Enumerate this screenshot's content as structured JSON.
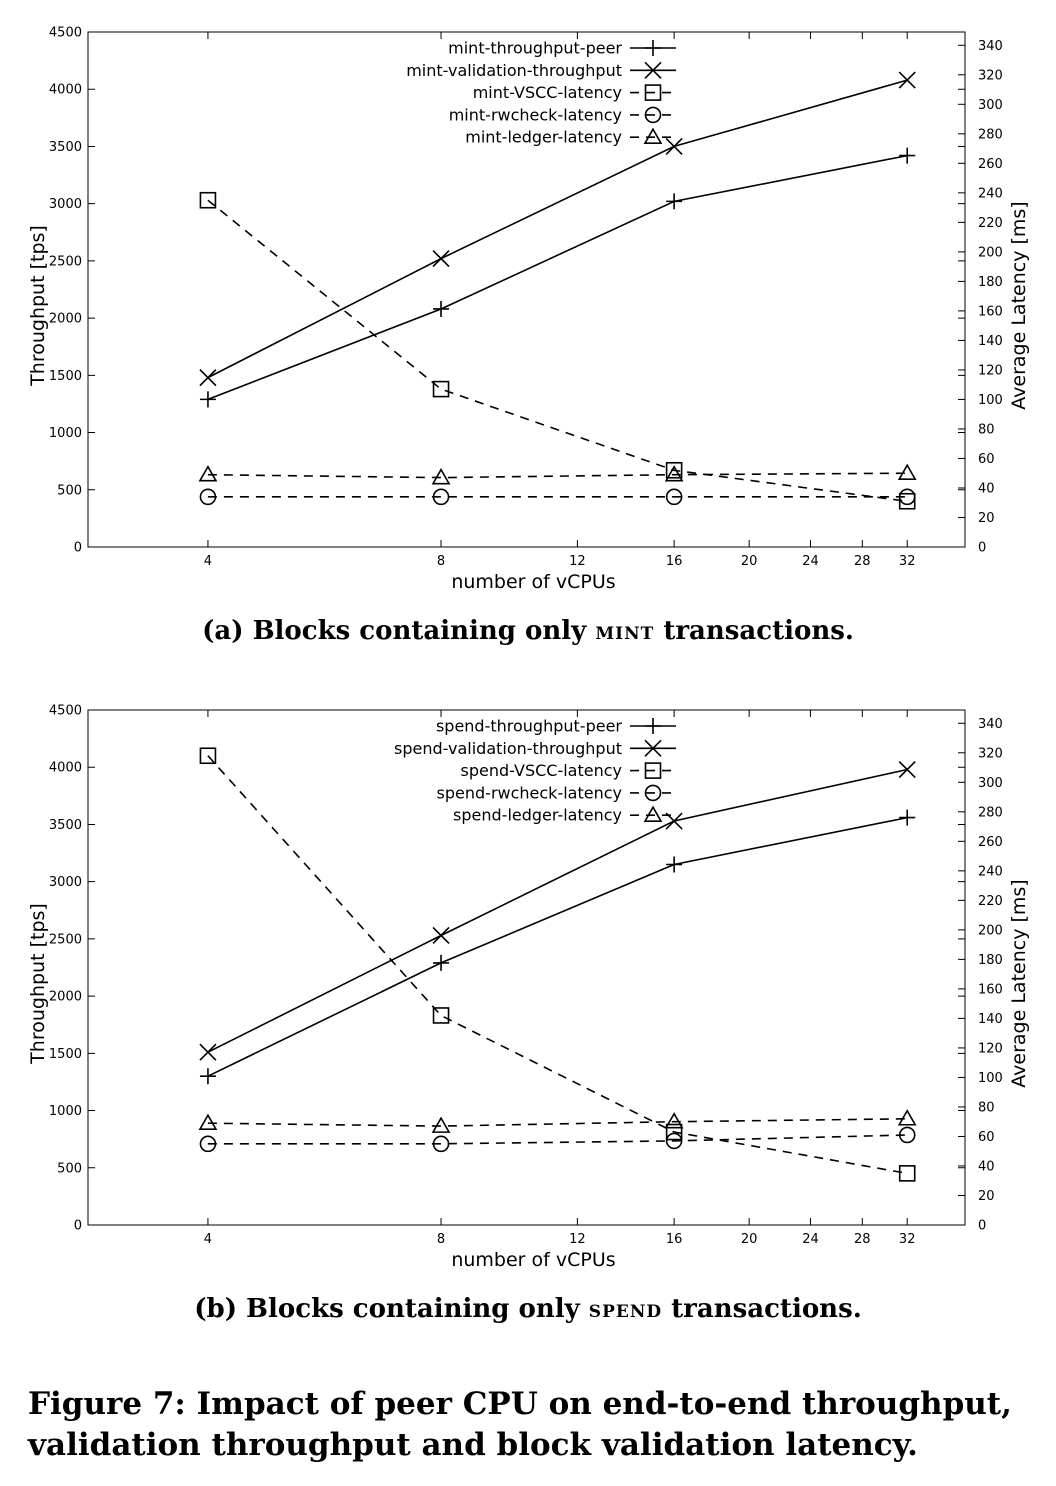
{
  "captions": {
    "a": {
      "prefix": "(a) Blocks containing only ",
      "keyword": "mint",
      "suffix": " transactions."
    },
    "b": {
      "prefix": "(b) Blocks containing only ",
      "keyword": "spend",
      "suffix": " transactions."
    },
    "figure": "Figure 7: Impact of peer CPU on end-to-end throughput, validation throughput and block validation latency."
  },
  "chart_data": [
    {
      "type": "line",
      "xlabel": "number of vCPUs",
      "ylabel": "Throughput [tps]",
      "y2label": "Average Latency [ms]",
      "x_scale": "log2",
      "x_ticks": [
        4,
        8,
        12,
        16,
        20,
        24,
        28,
        32
      ],
      "xlim": [
        2.8,
        38
      ],
      "ylim": [
        0,
        4500
      ],
      "y_ticks": [
        0,
        500,
        1000,
        1500,
        2000,
        2500,
        3000,
        3500,
        4000,
        4500
      ],
      "y2lim": [
        0,
        349
      ],
      "y2_ticks": [
        0,
        20,
        40,
        60,
        80,
        100,
        120,
        140,
        160,
        180,
        200,
        220,
        240,
        260,
        280,
        300,
        320,
        340
      ],
      "legend_position": "top-right",
      "x": [
        4,
        8,
        16,
        32
      ],
      "series": [
        {
          "name": "mint-throughput-peer",
          "axis": "left",
          "marker": "plus",
          "dash": false,
          "values": [
            1290,
            2080,
            3020,
            3420
          ]
        },
        {
          "name": "mint-validation-throughput",
          "axis": "left",
          "marker": "cross",
          "dash": false,
          "values": [
            1480,
            2520,
            3500,
            4080
          ]
        },
        {
          "name": "mint-VSCC-latency",
          "axis": "right",
          "marker": "square",
          "dash": true,
          "values": [
            235,
            107,
            52,
            31
          ]
        },
        {
          "name": "mint-rwcheck-latency",
          "axis": "right",
          "marker": "circle",
          "dash": true,
          "values": [
            34,
            34,
            34,
            34
          ]
        },
        {
          "name": "mint-ledger-latency",
          "axis": "right",
          "marker": "triangle",
          "dash": true,
          "values": [
            49,
            47,
            49,
            50
          ]
        }
      ]
    },
    {
      "type": "line",
      "xlabel": "number of vCPUs",
      "ylabel": "Throughput [tps]",
      "y2label": "Average Latency [ms]",
      "x_scale": "log2",
      "x_ticks": [
        4,
        8,
        12,
        16,
        20,
        24,
        28,
        32
      ],
      "xlim": [
        2.8,
        38
      ],
      "ylim": [
        0,
        4500
      ],
      "y_ticks": [
        0,
        500,
        1000,
        1500,
        2000,
        2500,
        3000,
        3500,
        4000,
        4500
      ],
      "y2lim": [
        0,
        349
      ],
      "y2_ticks": [
        0,
        20,
        40,
        60,
        80,
        100,
        120,
        140,
        160,
        180,
        200,
        220,
        240,
        260,
        280,
        300,
        320,
        340
      ],
      "legend_position": "top-right",
      "x": [
        4,
        8,
        16,
        32
      ],
      "series": [
        {
          "name": "spend-throughput-peer",
          "axis": "left",
          "marker": "plus",
          "dash": false,
          "values": [
            1300,
            2290,
            3150,
            3560
          ]
        },
        {
          "name": "spend-validation-throughput",
          "axis": "left",
          "marker": "cross",
          "dash": false,
          "values": [
            1510,
            2530,
            3530,
            3980
          ]
        },
        {
          "name": "spend-VSCC-latency",
          "axis": "right",
          "marker": "square",
          "dash": true,
          "values": [
            318,
            142,
            63,
            35
          ]
        },
        {
          "name": "spend-rwcheck-latency",
          "axis": "right",
          "marker": "circle",
          "dash": true,
          "values": [
            55,
            55,
            57,
            61
          ]
        },
        {
          "name": "spend-ledger-latency",
          "axis": "right",
          "marker": "triangle",
          "dash": true,
          "values": [
            69,
            67,
            70,
            72
          ]
        }
      ]
    }
  ]
}
